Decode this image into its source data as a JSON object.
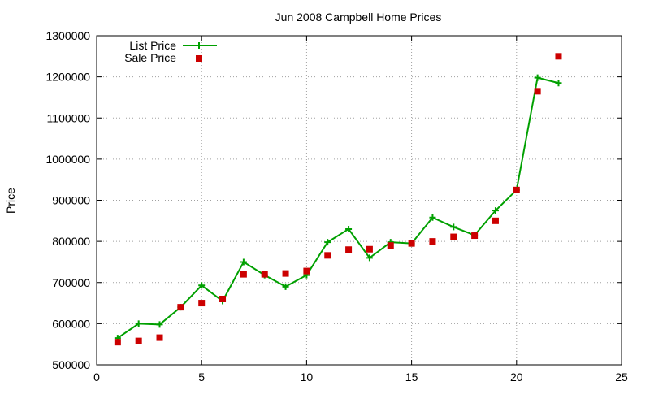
{
  "chart_data": {
    "type": "line",
    "title": "Jun 2008 Campbell Home Prices",
    "xlabel": "",
    "ylabel": "Price",
    "xlim": [
      0,
      25
    ],
    "ylim": [
      500000,
      1300000
    ],
    "x_ticks": [
      0,
      5,
      10,
      15,
      20,
      25
    ],
    "y_ticks": [
      500000,
      600000,
      700000,
      800000,
      900000,
      1000000,
      1100000,
      1200000,
      1300000
    ],
    "grid": true,
    "legend_position": "top-left",
    "series": [
      {
        "name": "List Price",
        "style": "lines+points",
        "marker": "plus",
        "color": "#00a000",
        "x": [
          1,
          2,
          3,
          4,
          5,
          6,
          7,
          8,
          9,
          10,
          11,
          12,
          13,
          14,
          15,
          16,
          17,
          18,
          19,
          20,
          21,
          22
        ],
        "y": [
          565000,
          600000,
          598000,
          640000,
          693000,
          655000,
          750000,
          718000,
          690000,
          718000,
          798000,
          830000,
          760000,
          798000,
          795000,
          858000,
          835000,
          815000,
          875000,
          925000,
          1198000,
          1185000
        ]
      },
      {
        "name": "Sale Price",
        "style": "points",
        "marker": "square",
        "color": "#cc0000",
        "x": [
          1,
          2,
          3,
          4,
          5,
          6,
          7,
          8,
          9,
          10,
          11,
          12,
          13,
          14,
          15,
          16,
          17,
          18,
          19,
          20,
          21,
          22
        ],
        "y": [
          555000,
          558000,
          566000,
          640000,
          650000,
          660000,
          720000,
          720000,
          722000,
          728000,
          766000,
          780000,
          781000,
          790000,
          795000,
          800000,
          811000,
          814000,
          850000,
          925000,
          1165000,
          1250000
        ]
      }
    ]
  }
}
